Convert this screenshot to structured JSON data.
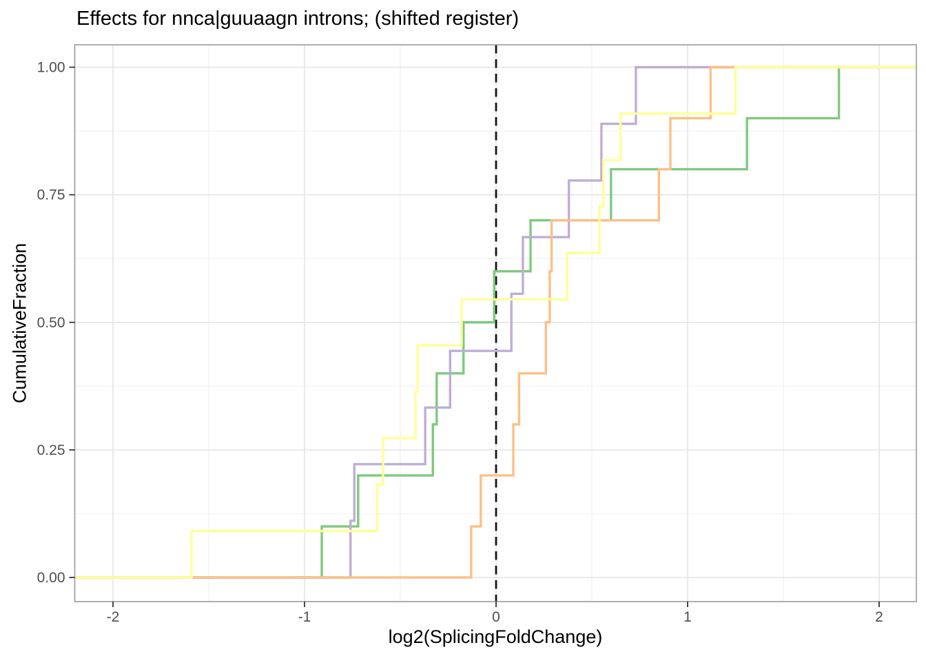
{
  "title": "Effects for nnca|guuaagn introns; (shifted register)",
  "colors": {
    "green": "#7FC97F",
    "purple": "#BEAED4",
    "orange": "#FDC086",
    "yellow": "#FFFF99",
    "vline": "#141414",
    "grid_major": "#E3E3E3",
    "grid_minor": "#F1F1F1",
    "panel_border": "#999999",
    "tick_mark": "#333333",
    "tick_label": "#4D4D4D"
  },
  "chart_data": {
    "type": "line",
    "subtype": "ecdf_step",
    "title": "Effects for nnca|guuaagn introns; (shifted register)",
    "xlabel": "log2(SplicingFoldChange)",
    "ylabel": "CumulativeFraction",
    "xlim": [
      -2.2,
      2.19
    ],
    "ylim": [
      -0.047,
      1.047
    ],
    "grid": "on",
    "legend_position": "none",
    "x_ticks": {
      "values": [
        -2,
        -1,
        0,
        1,
        2
      ],
      "labels": [
        "-2",
        "-1",
        "0",
        "1",
        "2"
      ],
      "minor": [
        -1.5,
        -0.5,
        0.5,
        1.5
      ]
    },
    "y_ticks": {
      "values": [
        0,
        0.25,
        0.5,
        0.75,
        1
      ],
      "labels": [
        "0.00",
        "0.25",
        "0.50",
        "0.75",
        "1.00"
      ],
      "minor": [
        0.125,
        0.375,
        0.625,
        0.875
      ]
    },
    "vline": {
      "x": 0,
      "style": "dashed",
      "color": "#141414"
    },
    "series": [
      {
        "name": "green",
        "color": "#7FC97F",
        "n_points": 10,
        "points": [
          [
            -0.91,
            0.1
          ],
          [
            -0.72,
            0.2
          ],
          [
            -0.33,
            0.3
          ],
          [
            -0.31,
            0.4
          ],
          [
            -0.17,
            0.5
          ],
          [
            -0.01,
            0.6
          ],
          [
            0.18,
            0.7
          ],
          [
            0.6,
            0.8
          ],
          [
            1.31,
            0.9
          ],
          [
            1.79,
            1.0
          ]
        ]
      },
      {
        "name": "purple",
        "color": "#BEAED4",
        "n_points": 9,
        "points": [
          [
            -0.76,
            0.111
          ],
          [
            -0.74,
            0.222
          ],
          [
            -0.37,
            0.333
          ],
          [
            -0.24,
            0.444
          ],
          [
            0.08,
            0.556
          ],
          [
            0.14,
            0.667
          ],
          [
            0.38,
            0.778
          ],
          [
            0.55,
            0.889
          ],
          [
            0.73,
            1.0
          ]
        ]
      },
      {
        "name": "orange",
        "color": "#FDC086",
        "n_points": 10,
        "points": [
          [
            -0.13,
            0.1
          ],
          [
            -0.08,
            0.2
          ],
          [
            0.09,
            0.3
          ],
          [
            0.12,
            0.4
          ],
          [
            0.26,
            0.5
          ],
          [
            0.28,
            0.6
          ],
          [
            0.29,
            0.7
          ],
          [
            0.85,
            0.8
          ],
          [
            0.91,
            0.9
          ],
          [
            1.12,
            1.0
          ]
        ]
      },
      {
        "name": "yellow",
        "color": "#FFFF99",
        "n_points": 11,
        "points": [
          [
            -1.59,
            0.091
          ],
          [
            -0.62,
            0.182
          ],
          [
            -0.59,
            0.273
          ],
          [
            -0.42,
            0.364
          ],
          [
            -0.41,
            0.455
          ],
          [
            -0.18,
            0.545
          ],
          [
            0.37,
            0.636
          ],
          [
            0.54,
            0.727
          ],
          [
            0.56,
            0.818
          ],
          [
            0.65,
            0.909
          ],
          [
            1.25,
            1.0
          ]
        ]
      }
    ]
  }
}
